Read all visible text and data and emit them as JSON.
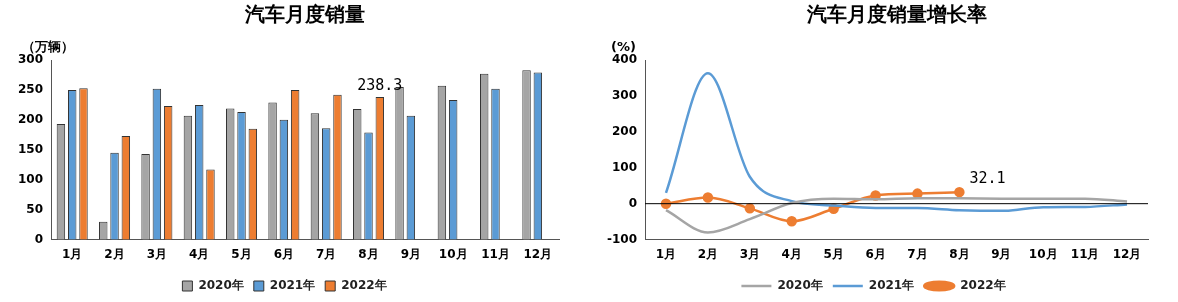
{
  "chart_data": [
    {
      "type": "bar",
      "title": "汽车月度销量",
      "ylabel": "（万辆）",
      "categories": [
        "1月",
        "2月",
        "3月",
        "4月",
        "5月",
        "6月",
        "7月",
        "8月",
        "9月",
        "10月",
        "11月",
        "12月"
      ],
      "series": [
        {
          "name": "2020年",
          "color": "#a5a5a5",
          "values": [
            193,
            30,
            143,
            207,
            219,
            229,
            211,
            218,
            255,
            257,
            277,
            283
          ]
        },
        {
          "name": "2021年",
          "color": "#5b9bd5",
          "values": [
            250,
            145,
            252,
            225,
            213,
            200,
            186,
            179,
            207,
            233,
            252,
            279
          ]
        },
        {
          "name": "2022年",
          "color": "#ed7d31",
          "values": [
            253,
            173,
            223,
            117,
            185,
            250,
            242,
            238.3,
            null,
            null,
            null,
            null
          ],
          "value_labels": [
            null,
            null,
            null,
            null,
            null,
            null,
            null,
            "238.3",
            null,
            null,
            null,
            null
          ]
        }
      ],
      "ylim": [
        0,
        300
      ],
      "yticks": [
        0,
        50,
        100,
        150,
        200,
        250,
        300
      ],
      "grid": false,
      "legend": "bottom"
    },
    {
      "type": "line",
      "title": "汽车月度销量增长率",
      "ylabel": "(%)",
      "categories": [
        "1月",
        "2月",
        "3月",
        "4月",
        "5月",
        "6月",
        "7月",
        "8月",
        "9月",
        "10月",
        "11月",
        "12月"
      ],
      "series": [
        {
          "name": "2020年",
          "color": "#a5a5a5",
          "marker": "none",
          "values": [
            -18,
            -80,
            -43,
            2,
            14,
            12,
            15,
            15,
            14,
            14,
            14,
            6
          ]
        },
        {
          "name": "2021年",
          "color": "#5b9bd5",
          "marker": "none",
          "values": [
            30,
            363,
            75,
            7,
            -5,
            -12,
            -12,
            -18,
            -20,
            -10,
            -9,
            -2
          ]
        },
        {
          "name": "2022年",
          "color": "#ed7d31",
          "marker": "circle",
          "values": [
            0,
            17,
            -13,
            -49,
            -14,
            23,
            28,
            32.1,
            null,
            null,
            null,
            null
          ],
          "value_labels": [
            null,
            null,
            null,
            null,
            null,
            null,
            null,
            "32.1",
            null,
            null,
            null,
            null
          ]
        }
      ],
      "ylim": [
        -100,
        400
      ],
      "yticks": [
        -100,
        0,
        100,
        200,
        300,
        400
      ],
      "grid": false,
      "legend": "bottom",
      "ref_lines": [
        {
          "axis": "y",
          "value": 0,
          "color": "#000000"
        }
      ]
    }
  ]
}
